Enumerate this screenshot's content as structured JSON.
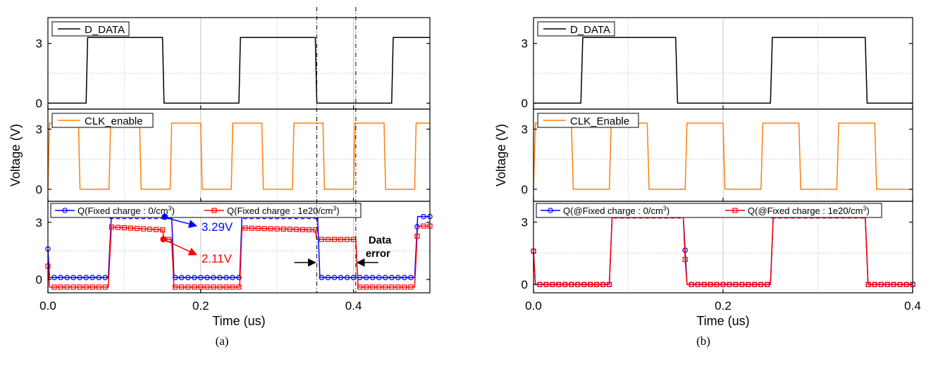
{
  "chart_data": [
    {
      "panel_label": "(a)",
      "type": "line",
      "xlabel": "Time (us)",
      "ylabel": "Voltage (V)",
      "xlim": [
        0,
        0.5
      ],
      "xticks": [
        "0.0",
        "0.2",
        "0.4"
      ],
      "subplots": [
        {
          "ylim": [
            -0.3,
            4.3
          ],
          "yticks": [
            "0",
            "3"
          ],
          "series": [
            {
              "name": "D_DATA",
              "color": "#000000",
              "marker": "none",
              "x": [
                0,
                0.05,
                0.052,
                0.15,
                0.152,
                0.25,
                0.252,
                0.35,
                0.352,
                0.45,
                0.452,
                0.5
              ],
              "y": [
                0,
                0,
                3.3,
                3.3,
                0,
                0,
                3.3,
                3.3,
                0,
                0,
                3.3,
                3.3
              ]
            }
          ]
        },
        {
          "ylim": [
            -0.6,
            4.0
          ],
          "yticks": [
            "0",
            "3"
          ],
          "series": [
            {
              "name": "CLK_enable",
              "color": "#ff7f0e",
              "marker": "none",
              "x": [
                0,
                0.002,
                0.04,
                0.042,
                0.08,
                0.082,
                0.12,
                0.122,
                0.16,
                0.162,
                0.2,
                0.202,
                0.24,
                0.242,
                0.28,
                0.282,
                0.32,
                0.322,
                0.36,
                0.362,
                0.4,
                0.402,
                0.44,
                0.442,
                0.48,
                0.482,
                0.5
              ],
              "y": [
                0,
                3.3,
                3.3,
                0,
                0,
                3.3,
                3.3,
                0,
                0,
                3.3,
                3.3,
                0,
                0,
                3.3,
                3.3,
                0,
                0,
                3.3,
                3.3,
                0,
                0,
                3.3,
                3.3,
                0,
                0,
                3.3,
                3.3
              ]
            }
          ]
        },
        {
          "ylim": [
            -0.7,
            4.1
          ],
          "yticks": [
            "0",
            "3"
          ],
          "series": [
            {
              "name": "Q(Fixed charge : 0/cm3)",
              "color": "#0000ff",
              "marker": "circle",
              "x": [
                0,
                0.002,
                0.079,
                0.083,
                0.162,
                0.165,
                0.251,
                0.254,
                0.353,
                0.356,
                0.48,
                0.484,
                0.5
              ],
              "y": [
                1.6,
                0.1,
                0.1,
                3.3,
                3.3,
                0.1,
                0.1,
                3.3,
                3.3,
                0.1,
                0.1,
                3.3,
                3.3
              ]
            },
            {
              "name": "Q(Fixed charge : 1e20/cm3)",
              "color": "#ff0000",
              "marker": "square",
              "x": [
                0,
                0.002,
                0.079,
                0.083,
                0.15,
                0.152,
                0.162,
                0.165,
                0.251,
                0.254,
                0.35,
                0.352,
                0.403,
                0.406,
                0.48,
                0.484,
                0.5
              ],
              "y": [
                0.7,
                -0.4,
                -0.4,
                2.75,
                2.6,
                2.1,
                2.1,
                -0.4,
                -0.4,
                2.7,
                2.6,
                2.1,
                2.1,
                -0.4,
                -0.4,
                2.8,
                2.8
              ]
            }
          ]
        }
      ],
      "legend_superscript": "3",
      "annotations": [
        {
          "text": "3.29V",
          "color": "#0000ff",
          "x": 0.153,
          "y": 3.29
        },
        {
          "text": "2.11V",
          "color": "#ff0000",
          "x": 0.153,
          "y": 2.11
        },
        {
          "text": "Data",
          "color": "#000000"
        },
        {
          "text": "error",
          "color": "#000000"
        }
      ],
      "vertical_markers_x": [
        0.352,
        0.403
      ]
    },
    {
      "panel_label": "(b)",
      "type": "line",
      "xlabel": "Time (us)",
      "ylabel": "Voltage (V)",
      "xlim": [
        0,
        0.4
      ],
      "xticks": [
        "0.0",
        "0.2",
        "0.4"
      ],
      "subplots": [
        {
          "ylim": [
            -0.3,
            4.3
          ],
          "yticks": [
            "0",
            "3"
          ],
          "series": [
            {
              "name": "D_DATA",
              "color": "#000000",
              "marker": "none",
              "x": [
                0,
                0.05,
                0.052,
                0.15,
                0.152,
                0.25,
                0.252,
                0.35,
                0.352,
                0.4
              ],
              "y": [
                0,
                0,
                3.3,
                3.3,
                0,
                0,
                3.3,
                3.3,
                0,
                0
              ]
            }
          ]
        },
        {
          "ylim": [
            -0.6,
            4.0
          ],
          "yticks": [
            "0",
            "3"
          ],
          "series": [
            {
              "name": "CLK_Enable",
              "color": "#ff7f0e",
              "marker": "none",
              "x": [
                0,
                0.002,
                0.04,
                0.042,
                0.08,
                0.082,
                0.12,
                0.122,
                0.16,
                0.162,
                0.2,
                0.202,
                0.24,
                0.242,
                0.28,
                0.282,
                0.32,
                0.322,
                0.36,
                0.362,
                0.4
              ],
              "y": [
                0,
                3.3,
                3.3,
                0,
                0,
                3.3,
                3.3,
                0,
                0,
                3.3,
                3.3,
                0,
                0,
                3.3,
                3.3,
                0,
                0,
                3.3,
                3.3,
                0,
                0
              ]
            }
          ]
        },
        {
          "ylim": [
            -0.4,
            4.0
          ],
          "yticks": [
            "0",
            "3"
          ],
          "series": [
            {
              "name": "Q(@Fixed charge : 0/cm3)",
              "color": "#0000ff",
              "marker": "circle",
              "x": [
                0,
                0.002,
                0.08,
                0.083,
                0.158,
                0.162,
                0.25,
                0.253,
                0.35,
                0.353,
                0.4
              ],
              "y": [
                1.6,
                0.0,
                0.0,
                3.3,
                3.3,
                0.0,
                0.0,
                3.3,
                3.3,
                0.0,
                0.0
              ]
            },
            {
              "name": "Q(@Fixed charge : 1e20/cm3)",
              "color": "#ff0000",
              "marker": "square",
              "x": [
                0,
                0.002,
                0.08,
                0.083,
                0.158,
                0.16,
                0.162,
                0.25,
                0.253,
                0.35,
                0.353,
                0.4
              ],
              "y": [
                1.6,
                0.0,
                0.0,
                3.3,
                3.3,
                1.2,
                0.0,
                0.0,
                3.3,
                3.3,
                0.0,
                0.0
              ]
            }
          ]
        }
      ],
      "legend_superscript": "3"
    }
  ]
}
